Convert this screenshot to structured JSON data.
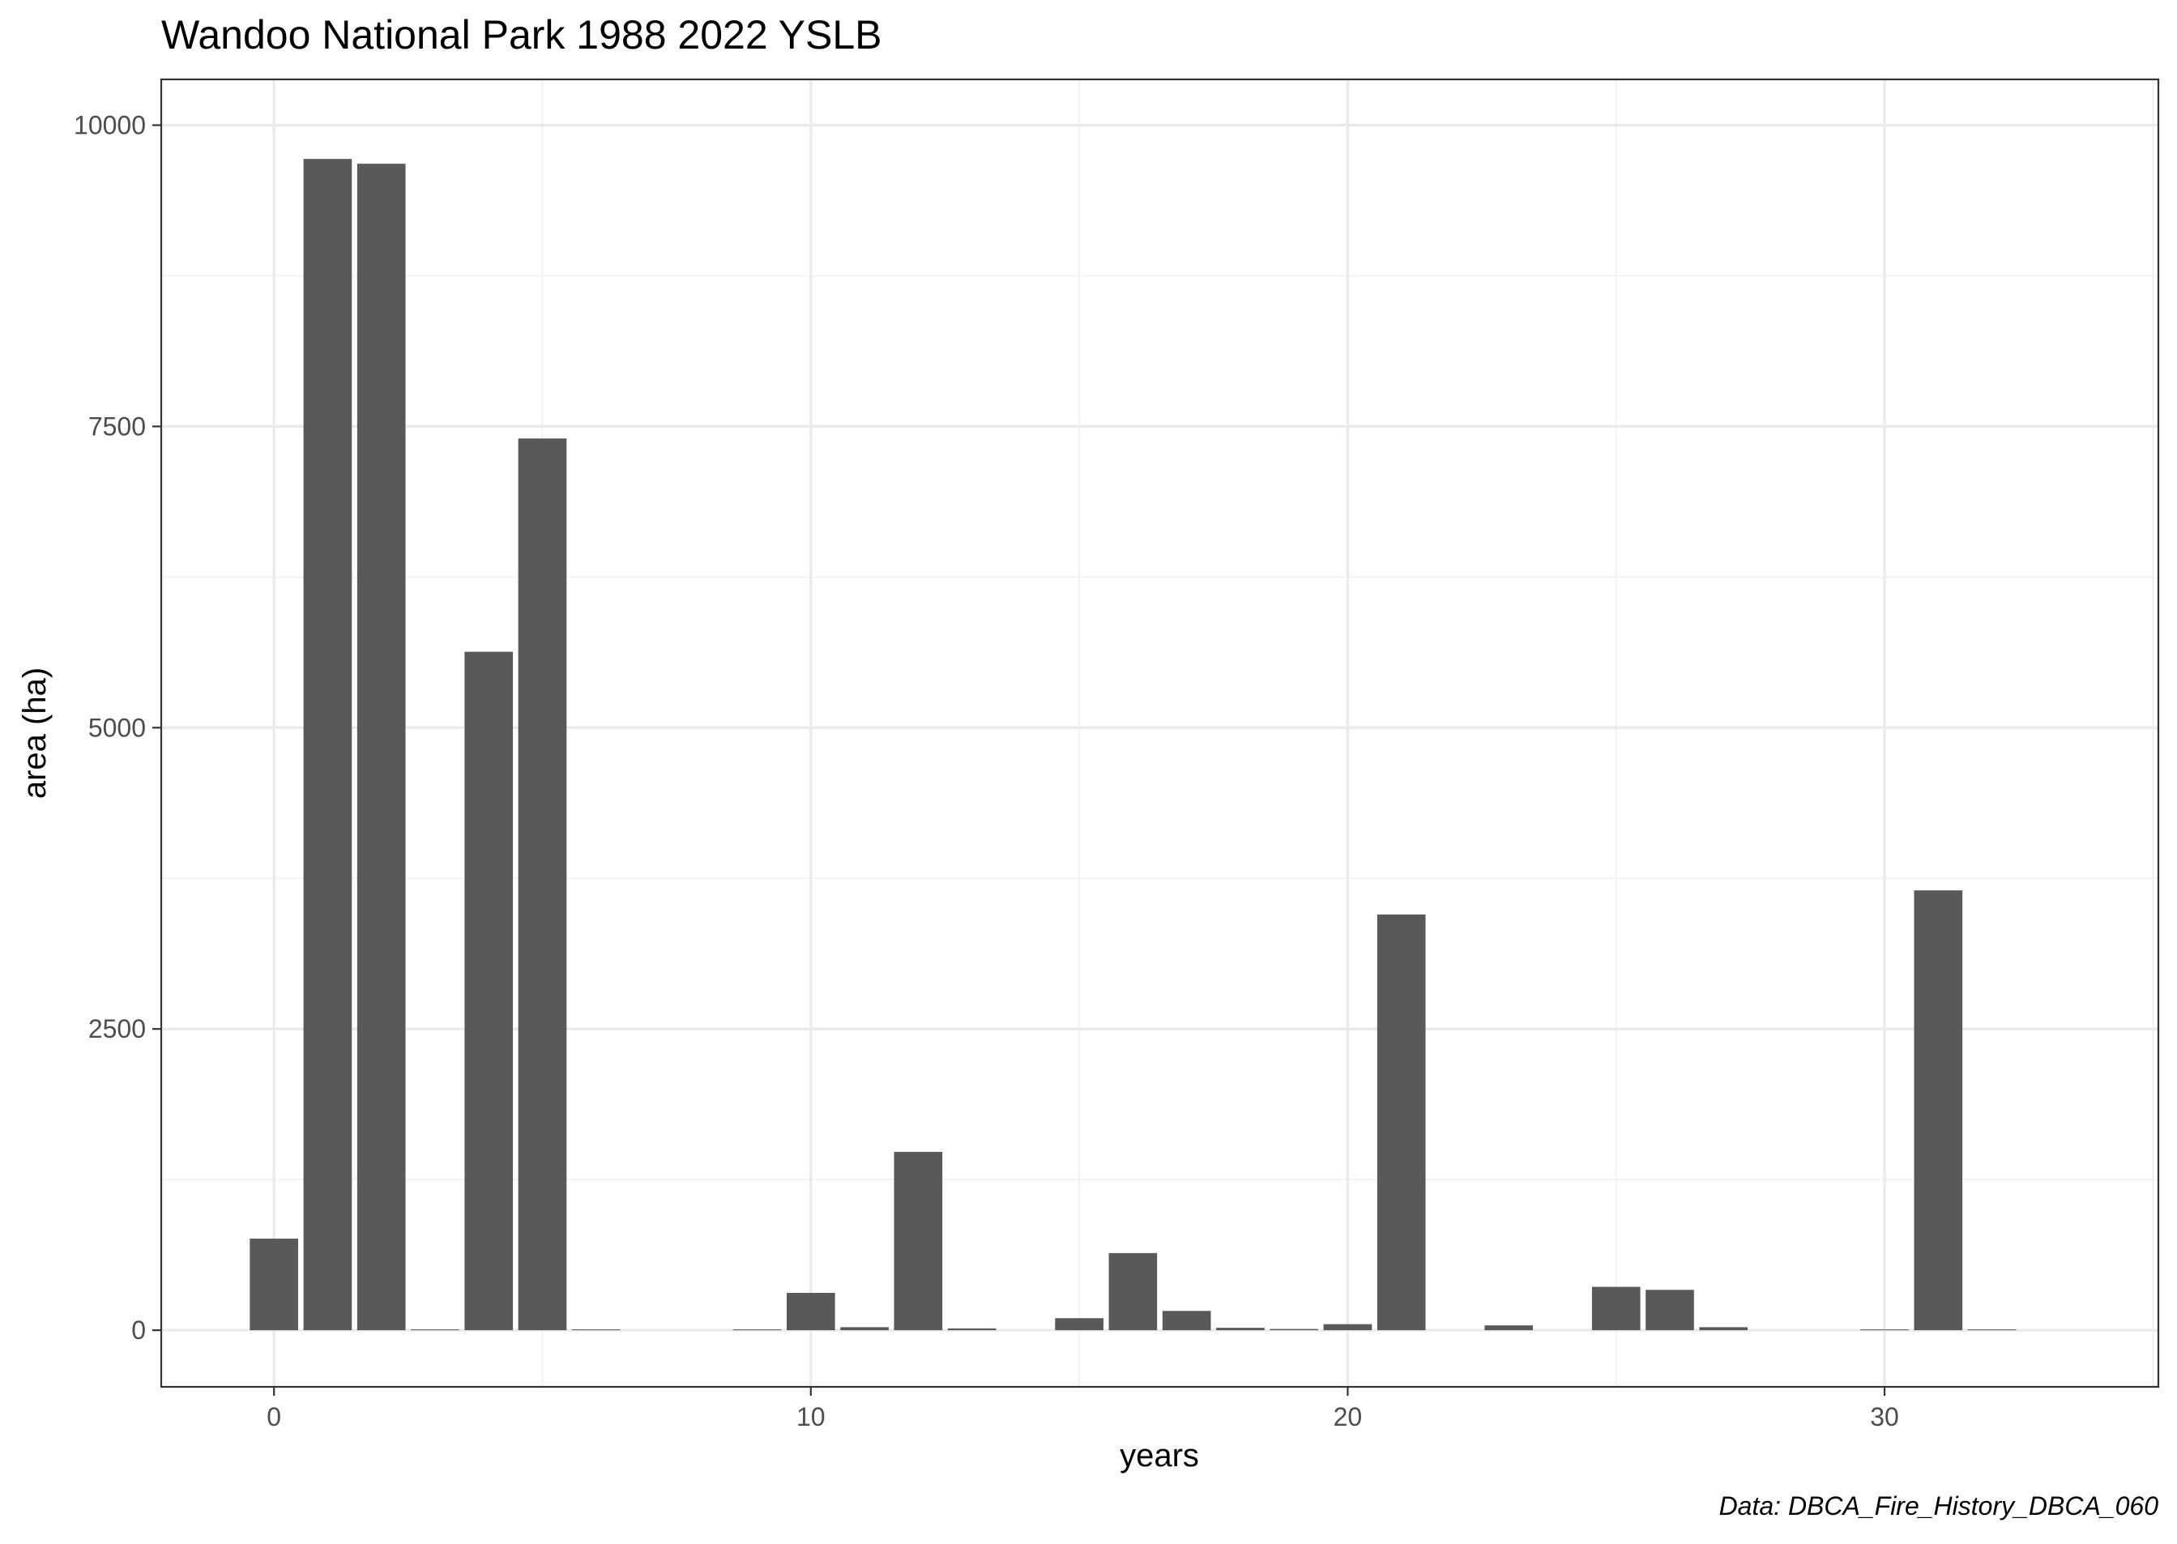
{
  "chart_data": {
    "type": "bar",
    "title": "Wandoo National Park 1988 2022 YSLB",
    "xlabel": "years",
    "ylabel": "area (ha)",
    "caption": "Data: DBCA_Fire_History_DBCA_060",
    "xlim": [
      -2.1,
      35.1
    ],
    "ylim": [
      -470,
      10380
    ],
    "x_ticks": [
      0,
      10,
      20,
      30
    ],
    "x_tick_labels": [
      "0",
      "10",
      "20",
      "30"
    ],
    "y_ticks": [
      0,
      2500,
      5000,
      7500,
      10000
    ],
    "y_tick_labels": [
      "0",
      "2500",
      "5000",
      "7500",
      "10000"
    ],
    "grid": true,
    "bar_color": "#595959",
    "x": [
      0,
      1,
      2,
      3,
      4,
      5,
      6,
      9,
      10,
      11,
      12,
      13,
      15,
      16,
      17,
      18,
      19,
      20,
      21,
      23,
      25,
      26,
      27,
      30,
      31,
      32
    ],
    "values": [
      760,
      9720,
      9680,
      5,
      5630,
      7400,
      5,
      3,
      310,
      25,
      1480,
      15,
      100,
      640,
      160,
      20,
      10,
      50,
      3450,
      40,
      360,
      335,
      25,
      3,
      3650,
      5
    ]
  }
}
